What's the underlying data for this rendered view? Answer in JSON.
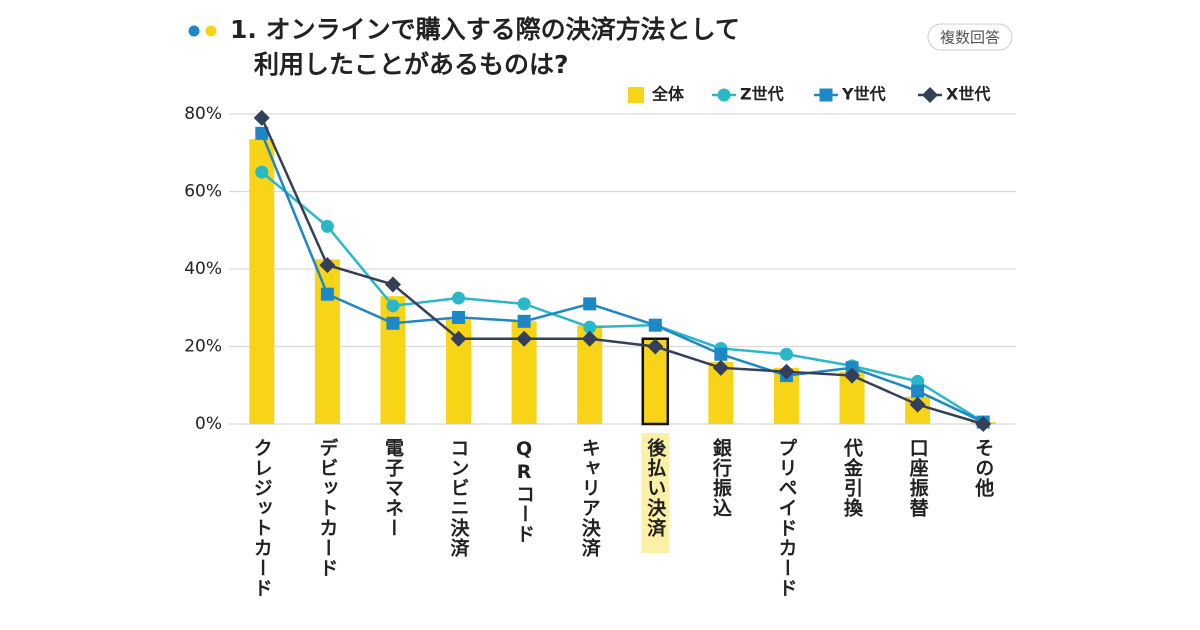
{
  "chart_data": {
    "type": "combo",
    "title_lines": [
      "1. オンラインで購入する際の決済方法として",
      "利用したことがあるものは?"
    ],
    "badge": "複数回答",
    "categories": [
      "クレジットカード",
      "デビットカード",
      "電子マネー",
      "コンビニ決済",
      "QRコード",
      "キャリア決済",
      "後払い決済",
      "銀行振込",
      "プリペイドカード",
      "代金引換",
      "口座振替",
      "その他"
    ],
    "highlight_index": 6,
    "series": [
      {
        "name": "全体",
        "style": "bar",
        "color": "#f7d417",
        "values": [
          73.5,
          42.5,
          33,
          27,
          26.5,
          25.5,
          22,
          16,
          14.5,
          13.5,
          7,
          0.5
        ]
      },
      {
        "name": "Z世代",
        "style": "line",
        "marker": "circle",
        "color": "#2ab8c8",
        "values": [
          65,
          51,
          30.5,
          32.5,
          31,
          25,
          25.5,
          19.5,
          18,
          15,
          11,
          0.5
        ]
      },
      {
        "name": "Y世代",
        "style": "line",
        "marker": "square",
        "color": "#1e88c7",
        "values": [
          75,
          33.5,
          26,
          27.5,
          26.5,
          31,
          25.5,
          18,
          12.5,
          14.5,
          8.5,
          0.5
        ]
      },
      {
        "name": "X世代",
        "style": "line",
        "marker": "diamond",
        "color": "#34405a",
        "values": [
          79,
          41,
          36,
          22,
          22,
          22,
          20,
          14.5,
          13.5,
          12.5,
          5,
          0
        ]
      }
    ],
    "ylim": [
      0,
      80
    ],
    "yticks": [
      {
        "value": 0,
        "label": "0%"
      },
      {
        "value": 20,
        "label": "20%"
      },
      {
        "value": 40,
        "label": "40%"
      },
      {
        "value": 60,
        "label": "60%"
      },
      {
        "value": 80,
        "label": "80%"
      }
    ],
    "grid": true
  }
}
